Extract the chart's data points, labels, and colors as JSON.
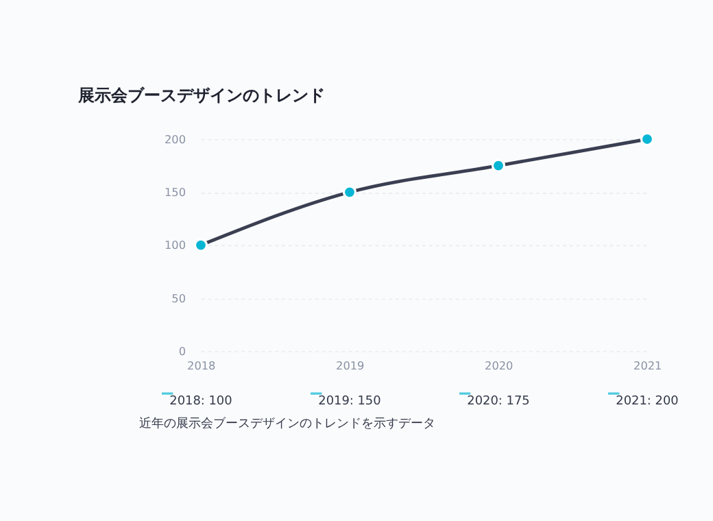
{
  "chart_data": {
    "type": "line",
    "title": "展示会ブースデザインのトレンド",
    "categories": [
      "2018",
      "2019",
      "2020",
      "2021"
    ],
    "series": [
      {
        "color": "#3a3f52",
        "colors": [
          "#06b6d4",
          "#06b6d4",
          "#06b6d4",
          "#06b6d4"
        ],
        "values": [
          100,
          150,
          175,
          200
        ]
      }
    ],
    "marker": "circle",
    "line_style": "solid",
    "value_labels": [
      "2018: 100",
      "2019: 150",
      "2020: 175",
      "2021: 200"
    ],
    "ylim": [
      0,
      200
    ],
    "yticks": [
      0,
      50,
      100,
      150,
      200
    ],
    "grid": "y",
    "annotations": [
      "近年の展示会ブースデザインのトレンドを示すデータ"
    ]
  }
}
